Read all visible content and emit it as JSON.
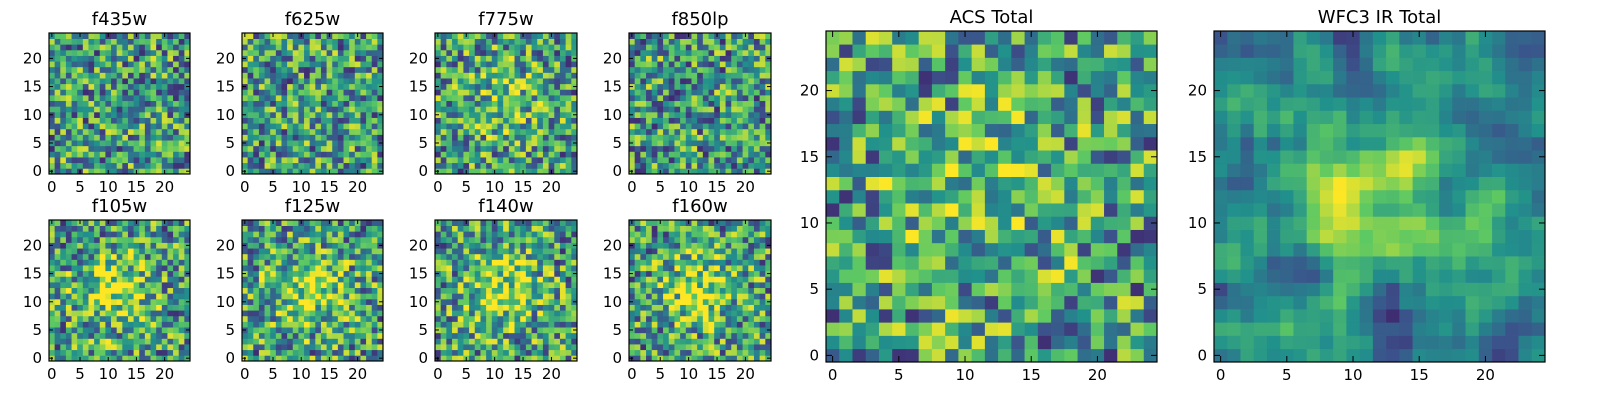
{
  "figure": {
    "background": "#ffffff",
    "colormap": [
      "#440154",
      "#3b528b",
      "#21918c",
      "#5ec962",
      "#fde725"
    ]
  },
  "chart_data": [
    {
      "type": "heatmap",
      "title": "f435w",
      "grid_size": [
        25,
        25
      ],
      "x_ticks": [
        "0",
        "5",
        "10",
        "15",
        "20"
      ],
      "y_ticks": [
        "0",
        "5",
        "10",
        "15",
        "20"
      ],
      "xlim": [
        -0.5,
        24.5
      ],
      "ylim": [
        -0.5,
        24.5
      ],
      "pattern": "noise"
    },
    {
      "type": "heatmap",
      "title": "f625w",
      "grid_size": [
        25,
        25
      ],
      "x_ticks": [
        "0",
        "5",
        "10",
        "15",
        "20"
      ],
      "y_ticks": [
        "0",
        "5",
        "10",
        "15",
        "20"
      ],
      "xlim": [
        -0.5,
        24.5
      ],
      "ylim": [
        -0.5,
        24.5
      ],
      "pattern": "noise"
    },
    {
      "type": "heatmap",
      "title": "f775w",
      "grid_size": [
        25,
        25
      ],
      "x_ticks": [
        "0",
        "5",
        "10",
        "15",
        "20"
      ],
      "y_ticks": [
        "0",
        "5",
        "10",
        "15",
        "20"
      ],
      "xlim": [
        -0.5,
        24.5
      ],
      "ylim": [
        -0.5,
        24.5
      ],
      "pattern": "weak_source"
    },
    {
      "type": "heatmap",
      "title": "f850lp",
      "grid_size": [
        25,
        25
      ],
      "x_ticks": [
        "0",
        "5",
        "10",
        "15",
        "20"
      ],
      "y_ticks": [
        "0",
        "5",
        "10",
        "15",
        "20"
      ],
      "xlim": [
        -0.5,
        24.5
      ],
      "ylim": [
        -0.5,
        24.5
      ],
      "pattern": "noise"
    },
    {
      "type": "heatmap",
      "title": "f105w",
      "grid_size": [
        25,
        25
      ],
      "x_ticks": [
        "0",
        "5",
        "10",
        "15",
        "20"
      ],
      "y_ticks": [
        "0",
        "5",
        "10",
        "15",
        "20"
      ],
      "xlim": [
        -0.5,
        24.5
      ],
      "ylim": [
        -0.5,
        24.5
      ],
      "pattern": "source"
    },
    {
      "type": "heatmap",
      "title": "f125w",
      "grid_size": [
        25,
        25
      ],
      "x_ticks": [
        "0",
        "5",
        "10",
        "15",
        "20"
      ],
      "y_ticks": [
        "0",
        "5",
        "10",
        "15",
        "20"
      ],
      "xlim": [
        -0.5,
        24.5
      ],
      "ylim": [
        -0.5,
        24.5
      ],
      "pattern": "source"
    },
    {
      "type": "heatmap",
      "title": "f140w",
      "grid_size": [
        25,
        25
      ],
      "x_ticks": [
        "0",
        "5",
        "10",
        "15",
        "20"
      ],
      "y_ticks": [
        "0",
        "5",
        "10",
        "15",
        "20"
      ],
      "xlim": [
        -0.5,
        24.5
      ],
      "ylim": [
        -0.5,
        24.5
      ],
      "pattern": "source"
    },
    {
      "type": "heatmap",
      "title": "f160w",
      "grid_size": [
        25,
        25
      ],
      "x_ticks": [
        "0",
        "5",
        "10",
        "15",
        "20"
      ],
      "y_ticks": [
        "0",
        "5",
        "10",
        "15",
        "20"
      ],
      "xlim": [
        -0.5,
        24.5
      ],
      "ylim": [
        -0.5,
        24.5
      ],
      "pattern": "source"
    },
    {
      "type": "heatmap",
      "title": "ACS Total",
      "grid_size": [
        25,
        25
      ],
      "x_ticks": [
        "0",
        "5",
        "10",
        "15",
        "20"
      ],
      "y_ticks": [
        "0",
        "5",
        "10",
        "15",
        "20"
      ],
      "xlim": [
        -0.5,
        24.5
      ],
      "ylim": [
        -0.5,
        24.5
      ],
      "pattern": "weak_source"
    },
    {
      "type": "heatmap",
      "title": "WFC3 IR Total",
      "grid_size": [
        25,
        25
      ],
      "x_ticks": [
        "0",
        "5",
        "10",
        "15",
        "20"
      ],
      "y_ticks": [
        "0",
        "5",
        "10",
        "15",
        "20"
      ],
      "xlim": [
        -0.5,
        24.5
      ],
      "ylim": [
        -0.5,
        24.5
      ],
      "pattern": "smooth_source"
    }
  ]
}
